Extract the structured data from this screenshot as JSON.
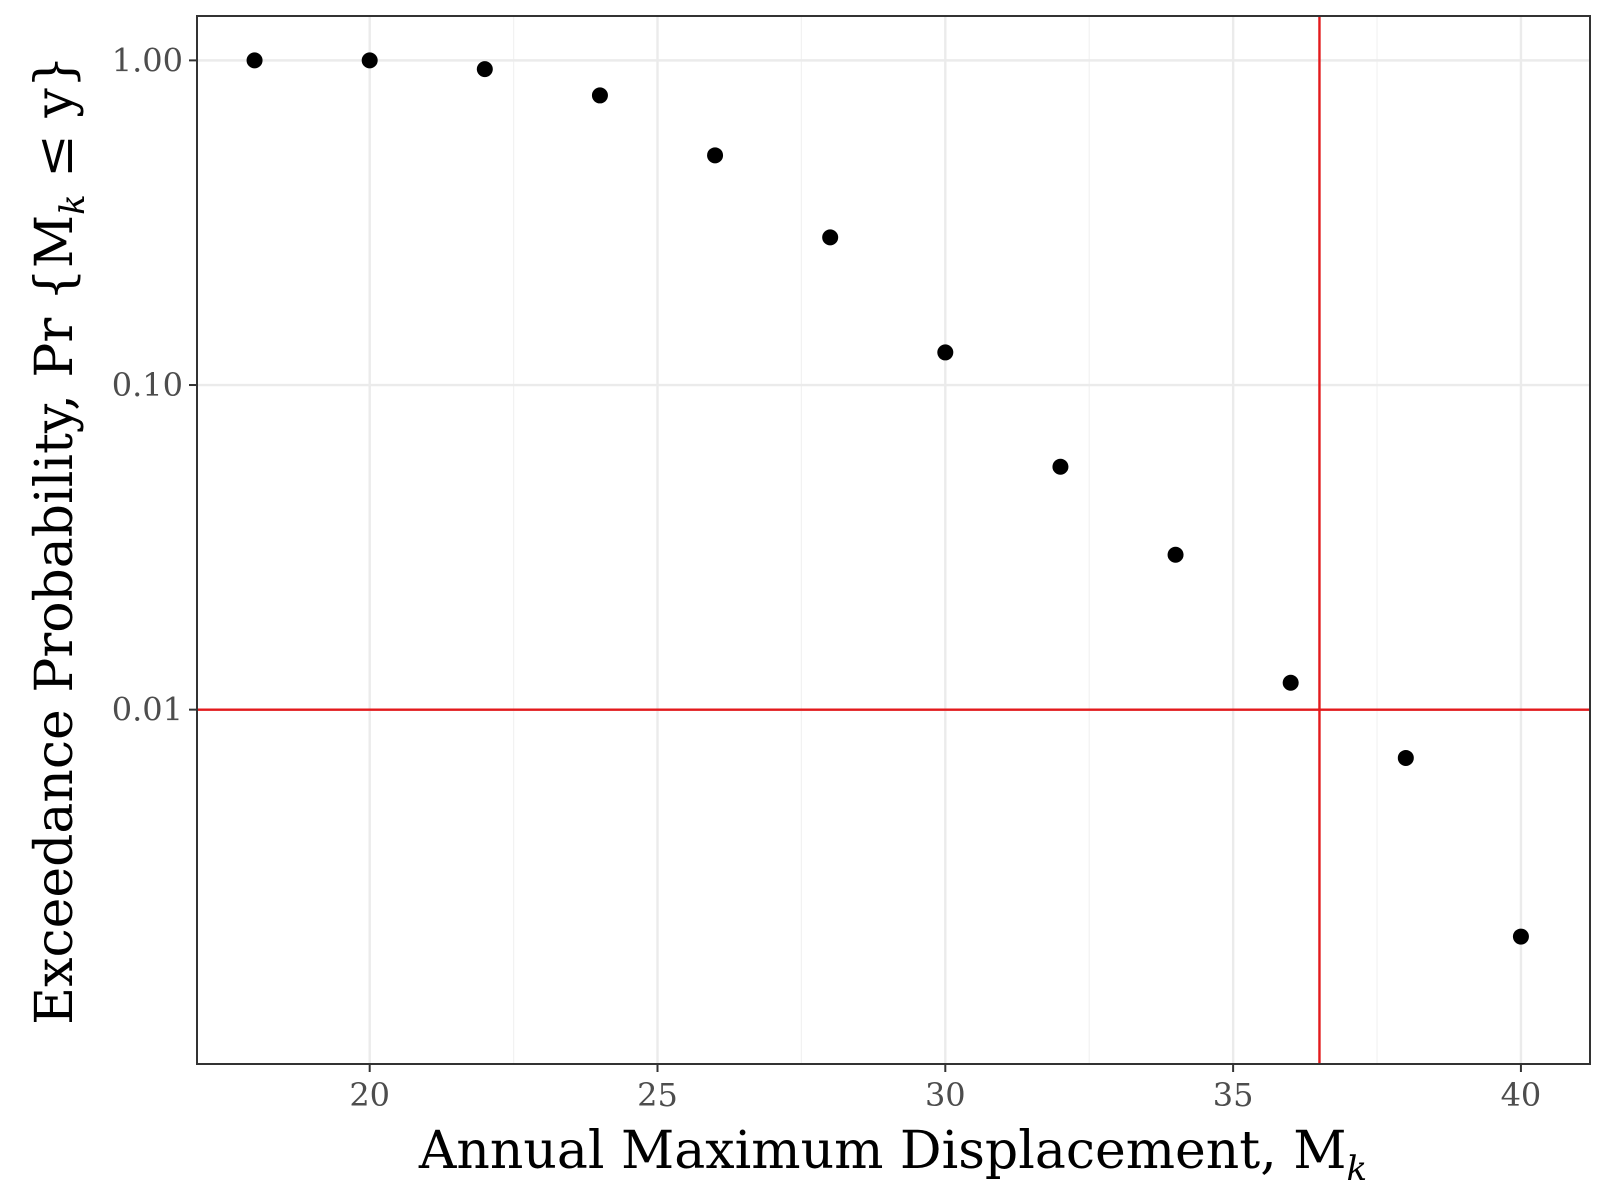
{
  "chart_data": {
    "type": "scatter",
    "title": "",
    "xlabel": "Annual Maximum Displacement, M",
    "xlabel_subscript": "k",
    "ylabel": "Exceedance Probability, Pr {M",
    "ylabel_subscript": "k",
    "ylabel_tail": " ≤ y}",
    "x_scale": "linear",
    "y_scale": "log10",
    "xlim": [
      17,
      41.2
    ],
    "ylim": [
      0.00081,
      1.37
    ],
    "x_ticks": [
      20,
      25,
      30,
      35,
      40
    ],
    "x_tick_labels": [
      "20",
      "25",
      "30",
      "35",
      "40"
    ],
    "y_ticks": [
      1.0,
      0.1,
      0.01
    ],
    "y_tick_labels": [
      "1.00",
      "0.10",
      "0.01"
    ],
    "grid": true,
    "points": {
      "x": [
        18,
        20,
        22,
        24,
        26,
        28,
        30,
        32,
        34,
        36,
        38,
        40
      ],
      "y": [
        1.0,
        1.0,
        0.94,
        0.78,
        0.51,
        0.285,
        0.126,
        0.056,
        0.03,
        0.0121,
        0.0071,
        0.002
      ]
    },
    "reference_lines": {
      "horizontal_y": 0.01,
      "vertical_x": 36.5,
      "color": "#e31a1c"
    },
    "point_color": "#000000"
  }
}
